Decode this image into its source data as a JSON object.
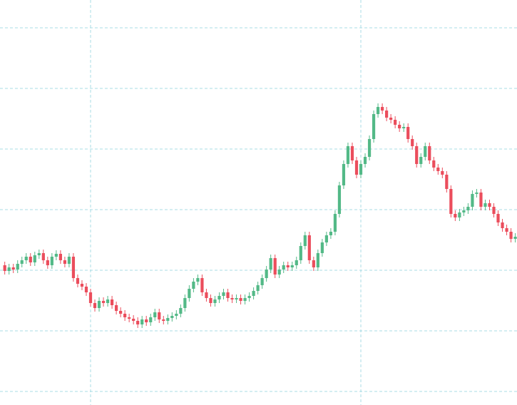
{
  "chart_data": {
    "type": "candlestick",
    "x": [
      0,
      1,
      2,
      3,
      4,
      5,
      6,
      7,
      8,
      9,
      10,
      11,
      12,
      13,
      14,
      15,
      16,
      17,
      18,
      19,
      20,
      21,
      22,
      23,
      24,
      25,
      26,
      27,
      28,
      29,
      30,
      31,
      32,
      33,
      34,
      35,
      36,
      37,
      38,
      39,
      40,
      41,
      42,
      43,
      44,
      45,
      46,
      47,
      48,
      49,
      50,
      51,
      52,
      53,
      54,
      55,
      56,
      57,
      58,
      59,
      60,
      61,
      62,
      63,
      64,
      65,
      66,
      67,
      68,
      69,
      70,
      71,
      72,
      73,
      74,
      75,
      76,
      77,
      78,
      79,
      80,
      81,
      82,
      83,
      84,
      85,
      86,
      87,
      88,
      89,
      90,
      91,
      92,
      93,
      94,
      95,
      96,
      97,
      98,
      99,
      100,
      101,
      102,
      103,
      104,
      105,
      106,
      107,
      108,
      109,
      110,
      111,
      112,
      113,
      114,
      115,
      116,
      117,
      118,
      119
    ],
    "open": [
      196,
      188,
      193,
      190,
      198,
      203,
      208,
      200,
      210,
      213,
      203,
      196,
      208,
      212,
      203,
      198,
      208,
      178,
      170,
      166,
      158,
      143,
      136,
      146,
      143,
      148,
      140,
      132,
      128,
      123,
      121,
      118,
      113,
      120,
      116,
      123,
      130,
      120,
      118,
      122,
      125,
      128,
      136,
      150,
      163,
      173,
      178,
      158,
      150,
      143,
      148,
      153,
      158,
      150,
      148,
      150,
      146,
      150,
      153,
      160,
      168,
      178,
      190,
      206,
      183,
      190,
      196,
      193,
      196,
      203,
      223,
      238,
      203,
      193,
      213,
      228,
      238,
      243,
      268,
      308,
      338,
      363,
      343,
      323,
      338,
      348,
      373,
      408,
      418,
      413,
      403,
      400,
      393,
      388,
      390,
      373,
      363,
      338,
      348,
      363,
      343,
      333,
      328,
      323,
      303,
      268,
      263,
      270,
      273,
      278,
      296,
      298,
      278,
      283,
      278,
      268,
      256,
      248,
      243,
      233
    ],
    "high": [
      201,
      198,
      198,
      203,
      208,
      213,
      213,
      215,
      218,
      218,
      208,
      213,
      217,
      217,
      208,
      213,
      213,
      183,
      175,
      171,
      163,
      148,
      151,
      151,
      153,
      153,
      145,
      137,
      133,
      128,
      126,
      123,
      125,
      125,
      128,
      135,
      135,
      125,
      127,
      130,
      133,
      141,
      155,
      168,
      178,
      183,
      183,
      163,
      155,
      153,
      158,
      163,
      163,
      155,
      155,
      155,
      155,
      158,
      165,
      173,
      183,
      195,
      211,
      211,
      195,
      201,
      201,
      201,
      208,
      228,
      243,
      243,
      208,
      218,
      233,
      243,
      248,
      273,
      313,
      343,
      368,
      368,
      348,
      343,
      353,
      378,
      413,
      423,
      423,
      418,
      408,
      405,
      398,
      395,
      395,
      378,
      368,
      353,
      368,
      368,
      348,
      338,
      333,
      328,
      308,
      273,
      275,
      278,
      283,
      301,
      303,
      303,
      288,
      288,
      283,
      273,
      261,
      253,
      248,
      241
    ],
    "low": [
      183,
      183,
      185,
      185,
      193,
      198,
      195,
      195,
      205,
      198,
      191,
      191,
      203,
      198,
      193,
      193,
      173,
      165,
      161,
      153,
      138,
      131,
      131,
      138,
      138,
      135,
      127,
      123,
      118,
      116,
      113,
      108,
      108,
      111,
      111,
      118,
      115,
      113,
      113,
      117,
      120,
      123,
      131,
      145,
      158,
      168,
      153,
      145,
      138,
      138,
      143,
      148,
      145,
      143,
      143,
      141,
      141,
      145,
      148,
      155,
      163,
      173,
      185,
      178,
      178,
      185,
      188,
      188,
      191,
      198,
      218,
      198,
      188,
      188,
      208,
      223,
      233,
      238,
      263,
      303,
      333,
      338,
      318,
      318,
      333,
      343,
      368,
      403,
      408,
      398,
      395,
      388,
      383,
      383,
      368,
      358,
      333,
      333,
      343,
      338,
      328,
      323,
      318,
      298,
      263,
      258,
      258,
      265,
      268,
      273,
      291,
      273,
      273,
      273,
      263,
      251,
      243,
      238,
      228,
      228
    ],
    "close": [
      188,
      193,
      190,
      198,
      203,
      208,
      200,
      210,
      213,
      203,
      196,
      208,
      212,
      203,
      198,
      208,
      178,
      170,
      166,
      158,
      143,
      136,
      146,
      143,
      148,
      140,
      132,
      128,
      123,
      121,
      118,
      113,
      120,
      116,
      123,
      130,
      120,
      118,
      122,
      125,
      128,
      136,
      150,
      163,
      173,
      178,
      158,
      150,
      143,
      148,
      153,
      158,
      150,
      148,
      150,
      146,
      150,
      153,
      160,
      168,
      178,
      190,
      206,
      183,
      190,
      196,
      193,
      196,
      203,
      223,
      238,
      203,
      193,
      213,
      228,
      238,
      243,
      268,
      308,
      338,
      363,
      343,
      323,
      338,
      348,
      373,
      408,
      418,
      413,
      403,
      400,
      393,
      388,
      390,
      373,
      363,
      338,
      348,
      363,
      343,
      333,
      328,
      323,
      303,
      268,
      263,
      270,
      273,
      278,
      296,
      298,
      278,
      283,
      278,
      268,
      256,
      248,
      243,
      233,
      236
    ],
    "up_color": "#53b987",
    "down_color": "#eb4d5c",
    "grid_color": "#a9dce6",
    "xlim": [
      -1.11,
      119.4
    ],
    "xticks": [
      20,
      83
    ],
    "ylim": [
      0,
      568
    ],
    "yticks": [
      19,
      104,
      189,
      274,
      359,
      444,
      529
    ],
    "grid": true
  }
}
